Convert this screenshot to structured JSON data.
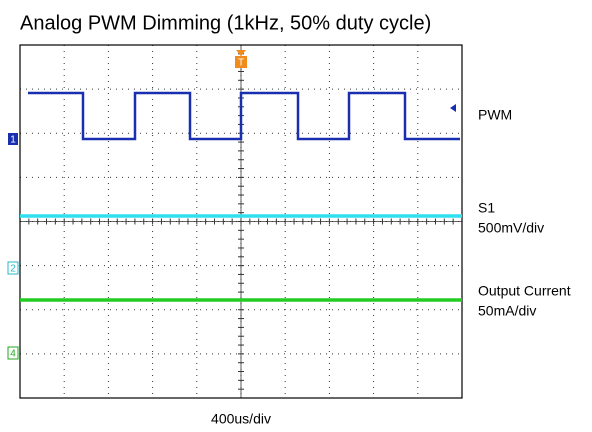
{
  "chart_data": {
    "type": "scope",
    "title": "Analog PWM Dimming (1kHz, 50% duty cycle)",
    "xlabel": "400us/div",
    "annotations": [
      "PWM",
      "S1",
      "500mV/div",
      "Output Current",
      "50mA/div"
    ],
    "channel_markers": [
      "1",
      "2",
      "4"
    ],
    "trigger_marker": "T"
  }
}
